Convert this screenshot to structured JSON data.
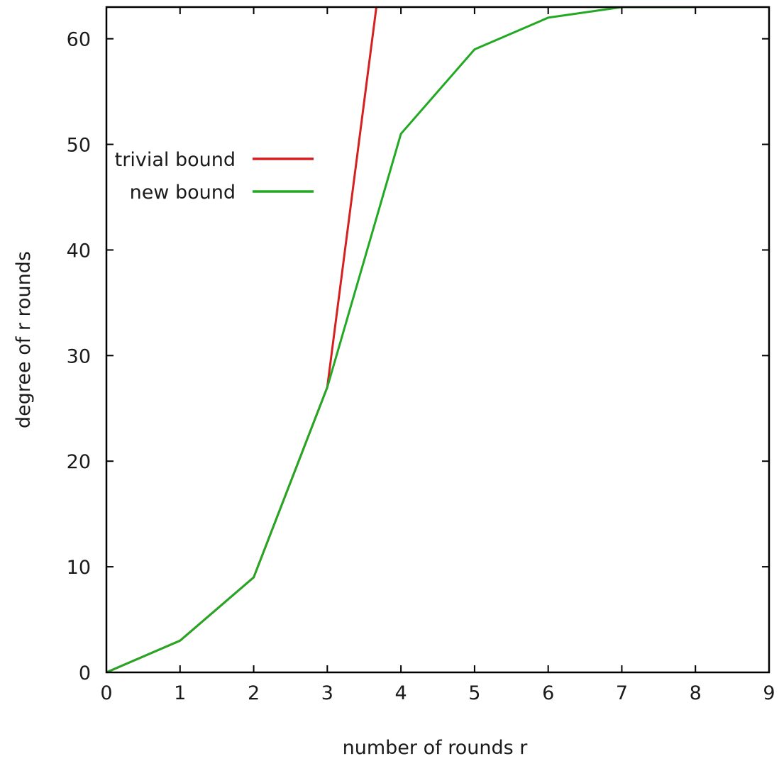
{
  "chart_data": {
    "type": "line",
    "title": "",
    "xlabel": "number of rounds r",
    "ylabel": "degree of r rounds",
    "xlim": [
      0,
      9
    ],
    "ylim": [
      0,
      63
    ],
    "xticks": [
      0,
      1,
      2,
      3,
      4,
      5,
      6,
      7,
      8,
      9
    ],
    "yticks": [
      0,
      10,
      20,
      30,
      40,
      50,
      60
    ],
    "grid": false,
    "legend_position": "upper-left",
    "series": [
      {
        "name": "trivial bound",
        "color": "#d62020",
        "x": [
          0,
          1,
          2,
          3,
          4
        ],
        "y": [
          0,
          3,
          9,
          27,
          81
        ]
      },
      {
        "name": "new bound",
        "color": "#22a822",
        "x": [
          0,
          1,
          2,
          3,
          4,
          5,
          6,
          7,
          8
        ],
        "y": [
          0,
          3,
          9,
          27,
          51,
          59,
          62,
          63,
          63
        ]
      }
    ]
  }
}
